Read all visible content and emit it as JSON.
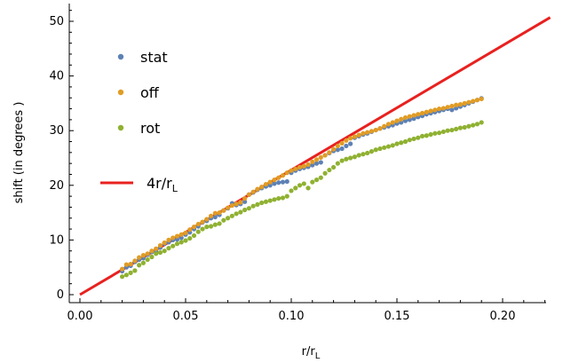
{
  "chart_data": {
    "type": "scatter",
    "xlabel_main": "r/r",
    "xlabel_sub": "L",
    "ylabel": "shift (in degrees )",
    "xlim": [
      0,
      0.225
    ],
    "ylim": [
      -1,
      53
    ],
    "xticks": [
      0.0,
      0.05,
      0.1,
      0.15,
      0.2
    ],
    "xtick_labels": [
      "0.00",
      "0.05",
      "0.10",
      "0.15",
      "0.20"
    ],
    "yticks": [
      0,
      10,
      20,
      30,
      40,
      50
    ],
    "ytick_labels": [
      "0",
      "10",
      "20",
      "30",
      "40",
      "50"
    ],
    "grid": false,
    "legend_position": "top-left",
    "series": [
      {
        "name": "stat",
        "color": "#5d81b4",
        "x": [
          0.02,
          0.022,
          0.024,
          0.026,
          0.028,
          0.03,
          0.032,
          0.034,
          0.036,
          0.038,
          0.04,
          0.042,
          0.044,
          0.046,
          0.048,
          0.05,
          0.052,
          0.054,
          0.056,
          0.058,
          0.06,
          0.062,
          0.064,
          0.066,
          0.068,
          0.07,
          0.072,
          0.074,
          0.076,
          0.078,
          0.08,
          0.082,
          0.084,
          0.086,
          0.088,
          0.09,
          0.092,
          0.094,
          0.096,
          0.098,
          0.1,
          0.102,
          0.104,
          0.106,
          0.108,
          0.11,
          0.112,
          0.114,
          0.116,
          0.118,
          0.12,
          0.122,
          0.124,
          0.126,
          0.128,
          0.13,
          0.132,
          0.134,
          0.136,
          0.138,
          0.14,
          0.142,
          0.144,
          0.146,
          0.148,
          0.15,
          0.152,
          0.154,
          0.156,
          0.158,
          0.16,
          0.162,
          0.164,
          0.166,
          0.168,
          0.17,
          0.172,
          0.174,
          0.176,
          0.178,
          0.18,
          0.182,
          0.184,
          0.186,
          0.188,
          0.19
        ],
        "y": [
          4.3,
          5.0,
          5.3,
          6.0,
          6.4,
          6.7,
          7.3,
          7.8,
          7.9,
          8.6,
          9.3,
          9.6,
          10.0,
          10.1,
          10.4,
          11.0,
          11.4,
          12.0,
          12.5,
          13.2,
          13.5,
          14.0,
          14.2,
          14.6,
          15.4,
          15.8,
          16.7,
          16.4,
          16.6,
          17.0,
          18.3,
          18.7,
          19.2,
          19.5,
          19.8,
          20.0,
          20.3,
          20.5,
          20.6,
          20.7,
          22.3,
          22.7,
          23.0,
          23.2,
          23.4,
          23.7,
          24.0,
          24.2,
          25.5,
          25.9,
          26.3,
          26.5,
          26.7,
          27.2,
          27.6,
          28.7,
          29.0,
          29.3,
          29.5,
          29.8,
          30.1,
          30.4,
          30.6,
          30.8,
          31.0,
          31.3,
          31.5,
          31.8,
          32.0,
          32.2,
          32.5,
          32.7,
          33.0,
          33.2,
          33.4,
          33.6,
          33.8,
          34.0,
          33.8,
          34.1,
          34.4,
          34.7,
          35.0,
          35.3,
          35.6,
          35.9
        ]
      },
      {
        "name": "off",
        "color": "#e19c24",
        "x": [
          0.02,
          0.022,
          0.024,
          0.026,
          0.028,
          0.03,
          0.032,
          0.034,
          0.036,
          0.038,
          0.04,
          0.042,
          0.044,
          0.046,
          0.048,
          0.05,
          0.052,
          0.054,
          0.056,
          0.058,
          0.06,
          0.062,
          0.064,
          0.066,
          0.068,
          0.07,
          0.072,
          0.074,
          0.076,
          0.078,
          0.08,
          0.082,
          0.084,
          0.086,
          0.088,
          0.09,
          0.092,
          0.094,
          0.096,
          0.098,
          0.1,
          0.102,
          0.104,
          0.106,
          0.108,
          0.11,
          0.112,
          0.114,
          0.116,
          0.118,
          0.12,
          0.122,
          0.124,
          0.126,
          0.128,
          0.13,
          0.132,
          0.134,
          0.136,
          0.138,
          0.14,
          0.142,
          0.144,
          0.146,
          0.148,
          0.15,
          0.152,
          0.154,
          0.156,
          0.158,
          0.16,
          0.162,
          0.164,
          0.166,
          0.168,
          0.17,
          0.172,
          0.174,
          0.176,
          0.178,
          0.18,
          0.182,
          0.184,
          0.186,
          0.188,
          0.19
        ],
        "y": [
          4.7,
          5.5,
          5.6,
          6.2,
          6.8,
          7.2,
          7.5,
          8.0,
          8.4,
          9.0,
          9.5,
          10.0,
          10.4,
          10.7,
          11.0,
          11.3,
          11.9,
          12.4,
          12.9,
          13.3,
          13.8,
          14.4,
          14.9,
          15.0,
          15.4,
          15.9,
          16.3,
          16.6,
          16.9,
          17.6,
          18.3,
          18.8,
          19.3,
          19.7,
          20.2,
          20.6,
          21.0,
          21.4,
          21.8,
          22.3,
          22.7,
          23.0,
          23.3,
          23.5,
          23.8,
          24.3,
          24.7,
          25.1,
          25.5,
          26.0,
          26.6,
          27.2,
          27.7,
          28.2,
          28.6,
          28.9,
          29.2,
          29.5,
          29.7,
          29.9,
          30.1,
          30.4,
          30.8,
          31.2,
          31.5,
          31.8,
          32.1,
          32.4,
          32.6,
          32.8,
          33.0,
          33.2,
          33.4,
          33.6,
          33.8,
          34.0,
          34.1,
          34.3,
          34.5,
          34.7,
          34.8,
          35.0,
          35.2,
          35.4,
          35.6,
          35.8
        ]
      },
      {
        "name": "rot",
        "color": "#8fb131",
        "x": [
          0.02,
          0.022,
          0.024,
          0.026,
          0.028,
          0.03,
          0.032,
          0.034,
          0.036,
          0.038,
          0.04,
          0.042,
          0.044,
          0.046,
          0.048,
          0.05,
          0.052,
          0.054,
          0.056,
          0.058,
          0.06,
          0.062,
          0.064,
          0.066,
          0.068,
          0.07,
          0.072,
          0.074,
          0.076,
          0.078,
          0.08,
          0.082,
          0.084,
          0.086,
          0.088,
          0.09,
          0.092,
          0.094,
          0.096,
          0.098,
          0.1,
          0.102,
          0.104,
          0.106,
          0.108,
          0.11,
          0.112,
          0.114,
          0.116,
          0.118,
          0.12,
          0.122,
          0.124,
          0.126,
          0.128,
          0.13,
          0.132,
          0.134,
          0.136,
          0.138,
          0.14,
          0.142,
          0.144,
          0.146,
          0.148,
          0.15,
          0.152,
          0.154,
          0.156,
          0.158,
          0.16,
          0.162,
          0.164,
          0.166,
          0.168,
          0.17,
          0.172,
          0.174,
          0.176,
          0.178,
          0.18,
          0.182,
          0.184,
          0.186,
          0.188,
          0.19
        ],
        "y": [
          3.3,
          3.6,
          4.0,
          4.4,
          5.4,
          5.8,
          6.4,
          6.9,
          7.5,
          7.7,
          8.0,
          8.5,
          8.9,
          9.3,
          9.6,
          9.9,
          10.3,
          10.8,
          11.5,
          12.0,
          12.4,
          12.5,
          12.8,
          13.0,
          13.6,
          14.0,
          14.4,
          14.8,
          15.1,
          15.5,
          15.8,
          16.2,
          16.5,
          16.8,
          17.0,
          17.2,
          17.4,
          17.6,
          17.7,
          18.0,
          19.0,
          19.5,
          20.0,
          20.3,
          19.5,
          20.6,
          21.0,
          21.4,
          22.2,
          22.8,
          23.3,
          24.0,
          24.5,
          24.8,
          25.0,
          25.2,
          25.5,
          25.7,
          25.9,
          26.2,
          26.5,
          26.7,
          26.9,
          27.1,
          27.3,
          27.6,
          27.8,
          28.0,
          28.3,
          28.5,
          28.7,
          29.0,
          29.1,
          29.3,
          29.5,
          29.6,
          29.8,
          30.0,
          30.1,
          30.3,
          30.5,
          30.6,
          30.8,
          31.0,
          31.2,
          31.5
        ]
      }
    ],
    "line": {
      "name_main": "4r/r",
      "name_sub": "L",
      "color": "#e8211f",
      "x": [
        0,
        0.2225
      ],
      "y": [
        0,
        50.7
      ]
    }
  }
}
